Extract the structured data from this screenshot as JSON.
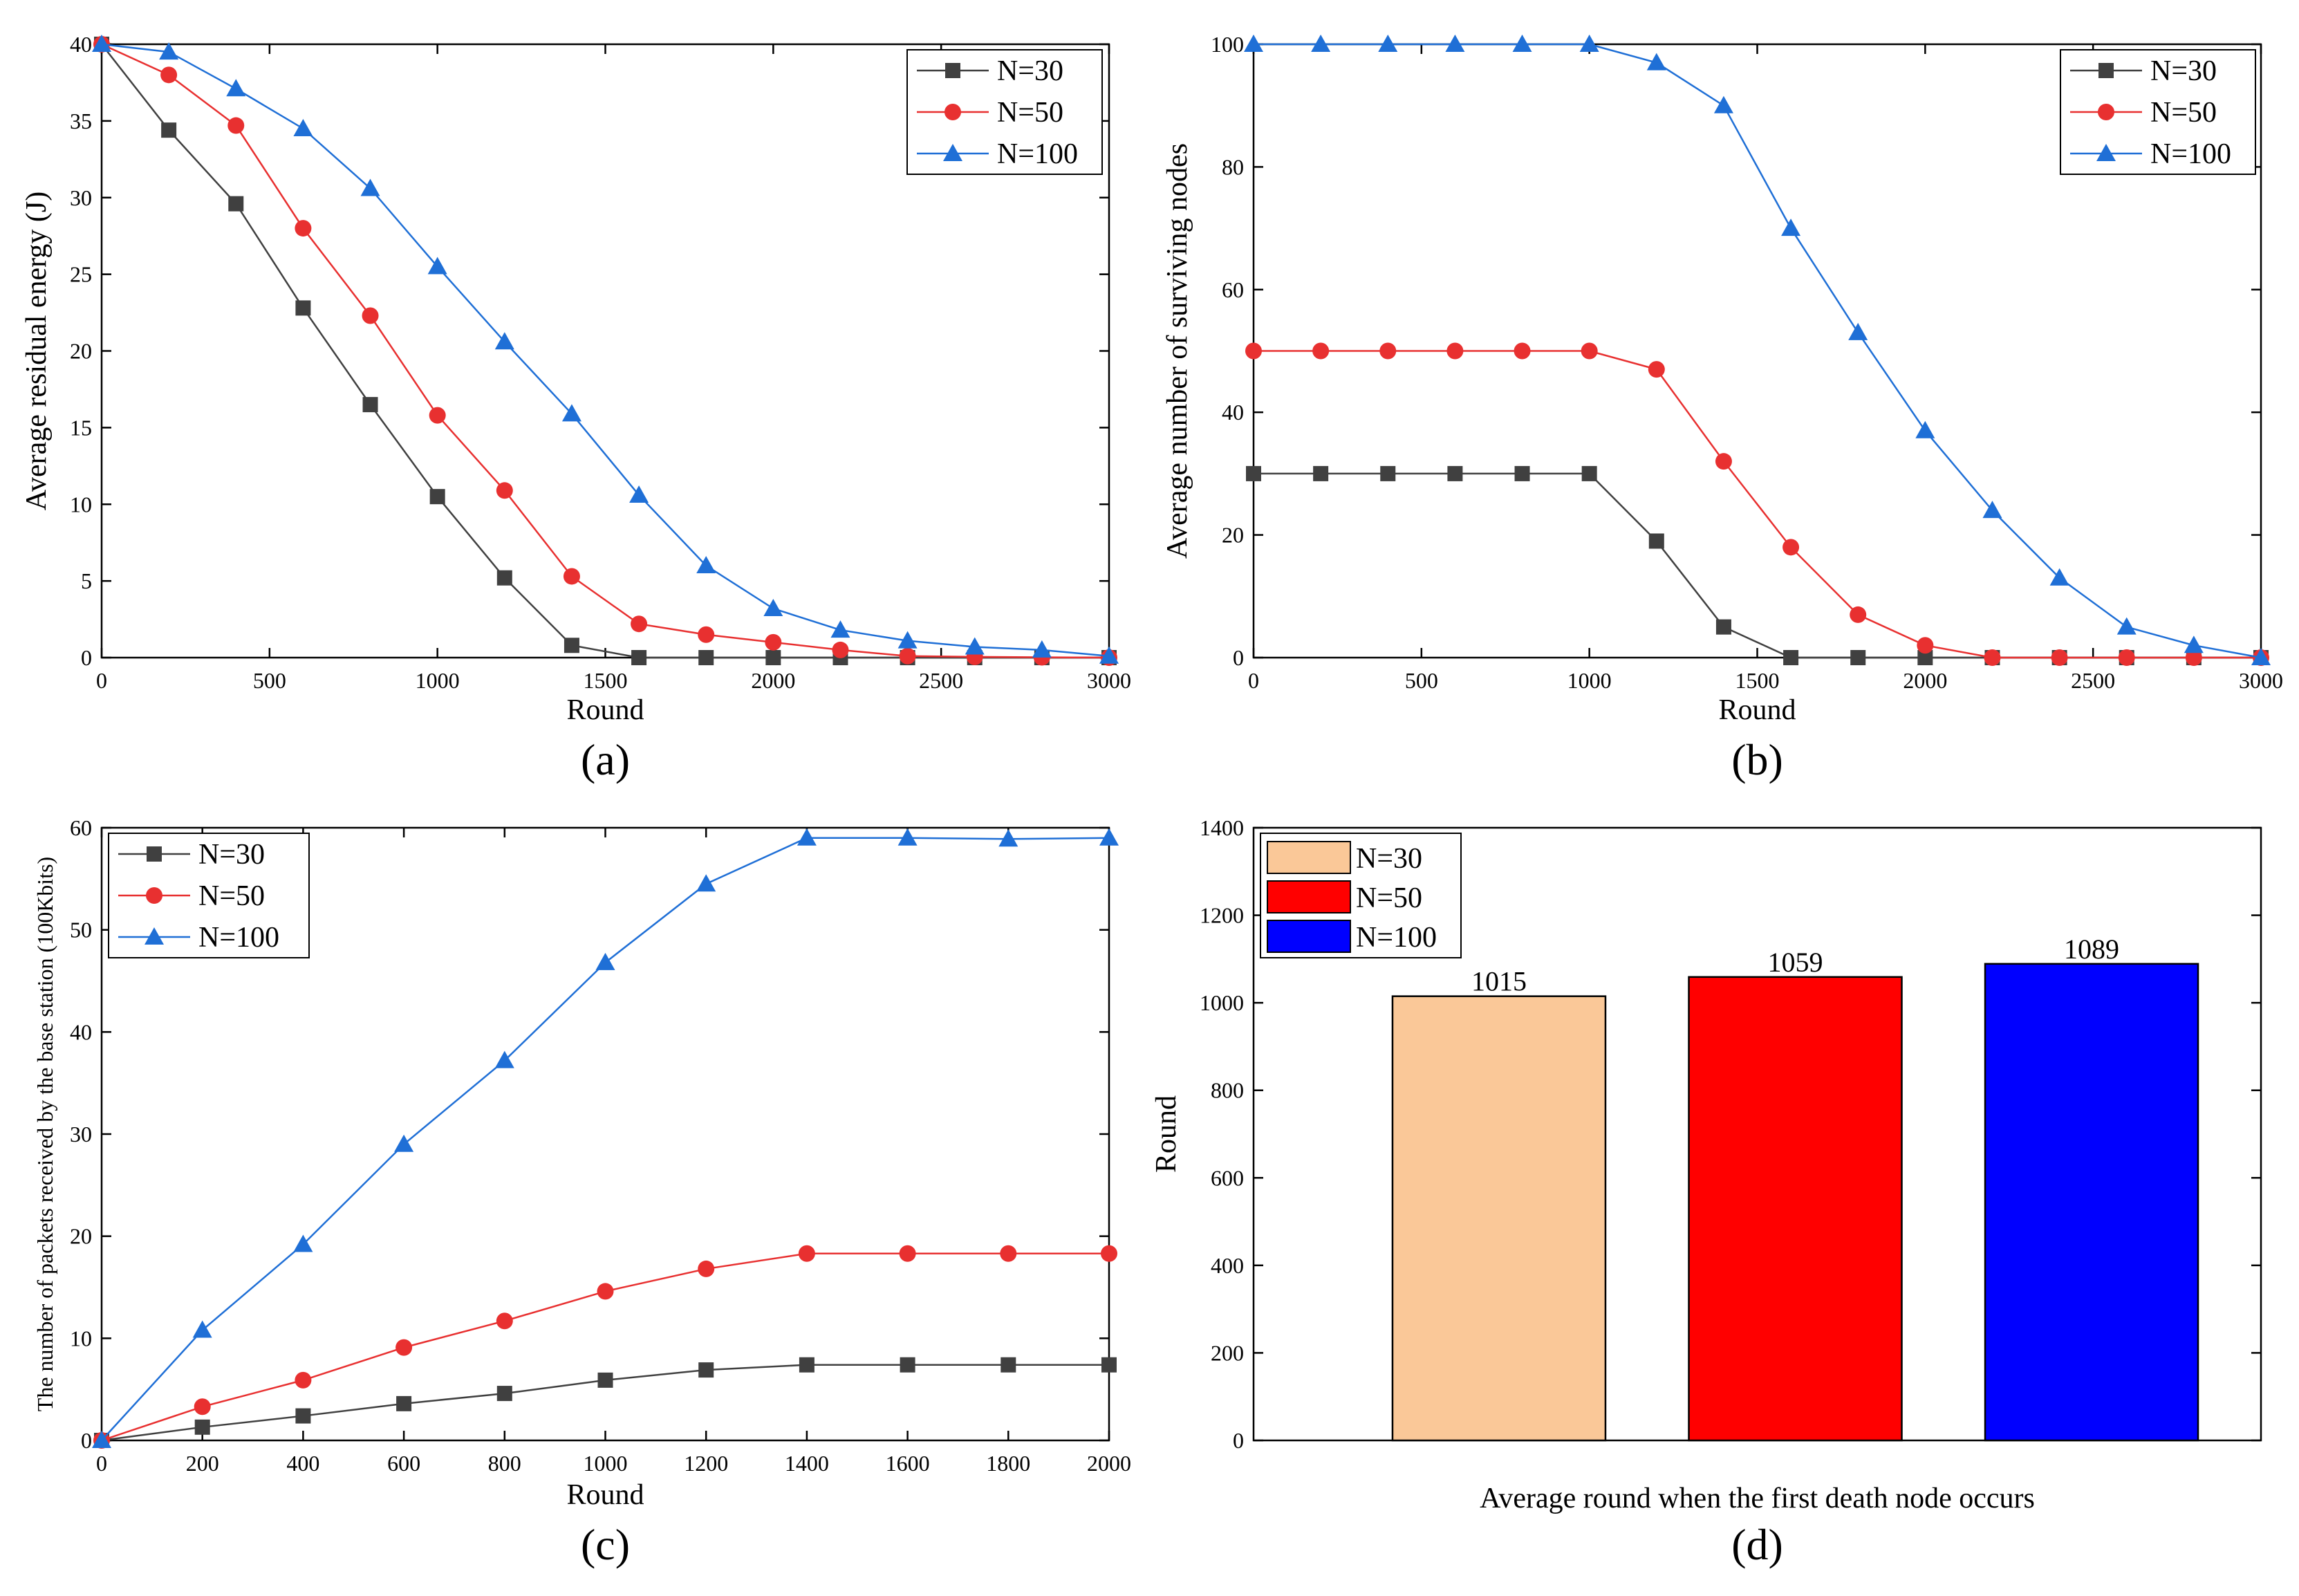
{
  "figure": {
    "series_colors": {
      "N=30": "#404040",
      "N=50": "#e83030",
      "N=100": "#1f6fd6"
    },
    "bar_colors": [
      "#fac898",
      "#ff0000",
      "#0000ff"
    ]
  },
  "chart_data": [
    {
      "id": "a",
      "type": "line",
      "panel_label": "(a)",
      "xlabel": "Round",
      "ylabel": "Average residual energy (J)",
      "xlim": [
        0,
        3000
      ],
      "ylim": [
        0,
        40
      ],
      "xticks": [
        0,
        500,
        1000,
        1500,
        2000,
        2500,
        3000
      ],
      "yticks": [
        0,
        5,
        10,
        15,
        20,
        25,
        30,
        35,
        40
      ],
      "x": [
        0,
        200,
        400,
        600,
        800,
        1000,
        1200,
        1400,
        1600,
        1800,
        2000,
        2200,
        2400,
        2600,
        2800,
        3000
      ],
      "legend_position": "top-right",
      "series": [
        {
          "name": "N=30",
          "marker": "square",
          "values": [
            40,
            34.4,
            29.6,
            22.8,
            16.5,
            10.5,
            5.2,
            0.8,
            0,
            0,
            0,
            0,
            0,
            0,
            0,
            0
          ]
        },
        {
          "name": "N=50",
          "marker": "circle",
          "values": [
            40,
            38,
            34.7,
            28,
            22.3,
            15.8,
            10.9,
            5.3,
            2.2,
            1.5,
            1.0,
            0.5,
            0.1,
            0.05,
            0.02,
            0
          ]
        },
        {
          "name": "N=100",
          "marker": "triangle",
          "values": [
            40,
            39.5,
            37.1,
            34.5,
            30.6,
            25.5,
            20.6,
            15.9,
            10.6,
            6.0,
            3.2,
            1.8,
            1.1,
            0.7,
            0.5,
            0.1
          ]
        }
      ]
    },
    {
      "id": "b",
      "type": "line",
      "panel_label": "(b)",
      "xlabel": "Round",
      "ylabel": "Average number of surviving nodes",
      "xlim": [
        0,
        3000
      ],
      "ylim": [
        0,
        100
      ],
      "xticks": [
        0,
        500,
        1000,
        1500,
        2000,
        2500,
        3000
      ],
      "yticks": [
        0,
        20,
        40,
        60,
        80,
        100
      ],
      "x": [
        0,
        200,
        400,
        600,
        800,
        1000,
        1200,
        1400,
        1600,
        1800,
        2000,
        2200,
        2400,
        2600,
        2800,
        3000
      ],
      "legend_position": "top-right",
      "series": [
        {
          "name": "N=30",
          "marker": "square",
          "values": [
            30,
            30,
            30,
            30,
            30,
            30,
            19,
            5,
            0,
            0,
            0,
            0,
            0,
            0,
            0,
            0
          ]
        },
        {
          "name": "N=50",
          "marker": "circle",
          "values": [
            50,
            50,
            50,
            50,
            50,
            50,
            47,
            32,
            18,
            7,
            2,
            0,
            0,
            0,
            0,
            0
          ]
        },
        {
          "name": "N=100",
          "marker": "triangle",
          "values": [
            100,
            100,
            100,
            100,
            100,
            100,
            97,
            90,
            70,
            53,
            37,
            24,
            13,
            5,
            2,
            0
          ]
        }
      ]
    },
    {
      "id": "c",
      "type": "line",
      "panel_label": "(c)",
      "xlabel": "Round",
      "ylabel": "The number of packets received by the base station (100Kbits)",
      "xlim": [
        0,
        2000
      ],
      "ylim": [
        0,
        60
      ],
      "xticks": [
        0,
        200,
        400,
        600,
        800,
        1000,
        1200,
        1400,
        1600,
        1800,
        2000
      ],
      "yticks": [
        0,
        10,
        20,
        30,
        40,
        50,
        60
      ],
      "x": [
        0,
        200,
        400,
        600,
        800,
        1000,
        1200,
        1400,
        1600,
        1800,
        2000
      ],
      "legend_position": "top-left",
      "series": [
        {
          "name": "N=30",
          "marker": "square",
          "values": [
            0,
            1.3,
            2.4,
            3.6,
            4.6,
            5.9,
            6.9,
            7.4,
            7.4,
            7.4,
            7.4
          ]
        },
        {
          "name": "N=50",
          "marker": "circle",
          "values": [
            0,
            3.3,
            5.9,
            9.1,
            11.7,
            14.6,
            16.8,
            18.3,
            18.3,
            18.3,
            18.3
          ]
        },
        {
          "name": "N=100",
          "marker": "triangle",
          "values": [
            0,
            10.8,
            19.2,
            29,
            37.2,
            46.8,
            54.5,
            59,
            59,
            58.9,
            59
          ]
        }
      ]
    },
    {
      "id": "d",
      "type": "bar",
      "panel_label": "(d)",
      "xlabel": "Average round when the first death node occurs",
      "ylabel": "Round",
      "ylim": [
        0,
        1400
      ],
      "yticks": [
        0,
        200,
        400,
        600,
        800,
        1000,
        1200,
        1400
      ],
      "categories": [
        "N=30",
        "N=50",
        "N=100"
      ],
      "values": [
        1015,
        1059,
        1089
      ],
      "data_labels": [
        "1015",
        "1059",
        "1089"
      ],
      "legend_position": "top-left"
    }
  ]
}
